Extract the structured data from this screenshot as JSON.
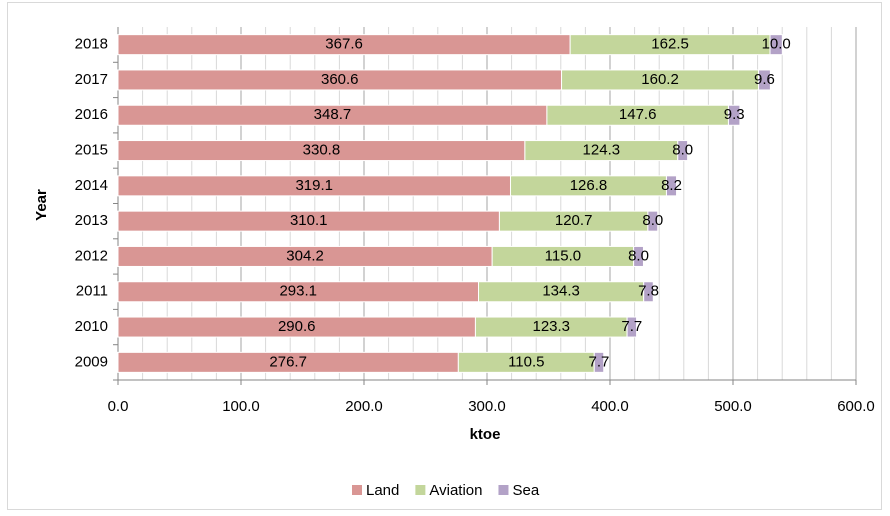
{
  "chart_data": {
    "type": "stacked-bar-horizontal",
    "categories": [
      "2009",
      "2010",
      "2011",
      "2012",
      "2013",
      "2014",
      "2015",
      "2016",
      "2017",
      "2018"
    ],
    "series": [
      {
        "name": "Land",
        "color": "#d99694",
        "values": [
          276.7,
          290.6,
          293.1,
          304.2,
          310.1,
          319.1,
          330.8,
          348.7,
          360.6,
          367.6
        ],
        "value_labels": [
          "276.7",
          "290.6",
          "293.1",
          "304.2",
          "310.1",
          "319.1",
          "330.8",
          "348.7",
          "360.6",
          "367.6"
        ]
      },
      {
        "name": "Aviation",
        "color": "#c3d69b",
        "values": [
          110.5,
          123.3,
          134.3,
          115.0,
          120.7,
          126.8,
          124.3,
          147.6,
          160.2,
          162.5
        ],
        "value_labels": [
          "110.5",
          "123.3",
          "134.3",
          "115.0",
          "120.7",
          "126.8",
          "124.3",
          "147.6",
          "160.2",
          "162.5"
        ]
      },
      {
        "name": "Sea",
        "color": "#b3a2c7",
        "values": [
          7.7,
          7.7,
          7.8,
          8.0,
          8.0,
          8.2,
          8.0,
          9.3,
          9.6,
          10.0
        ],
        "value_labels": [
          "7.7",
          "7.7",
          "7.8",
          "8.0",
          "8.0",
          "8.2",
          "8.0",
          "9.3",
          "9.6",
          "10.0"
        ]
      }
    ],
    "xlabel": "ktoe",
    "ylabel": "Year",
    "xlim": [
      0,
      600
    ],
    "xticks": [
      {
        "value": 0,
        "label": "0.0"
      },
      {
        "value": 100,
        "label": "100.0"
      },
      {
        "value": 200,
        "label": "200.0"
      },
      {
        "value": 300,
        "label": "300.0"
      },
      {
        "value": 400,
        "label": "400.0"
      },
      {
        "value": 500,
        "label": "500.0"
      },
      {
        "value": 600,
        "label": "600.0"
      }
    ],
    "xminorticks": [
      20,
      40,
      60,
      80,
      120,
      140,
      160,
      180,
      220,
      240,
      260,
      280,
      320,
      340,
      360,
      380,
      420,
      440,
      460,
      480,
      520,
      540,
      560,
      580
    ],
    "grid": true,
    "legend": "bottom"
  }
}
